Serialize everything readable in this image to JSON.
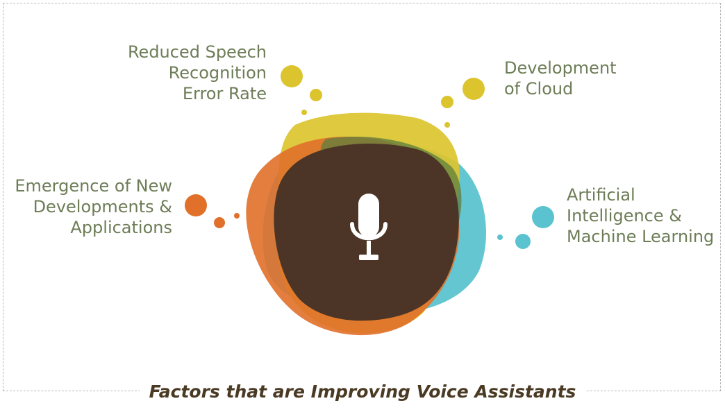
{
  "factors": [
    {
      "id": "speech",
      "lines": [
        "Reduced Speech",
        "Recognition",
        "Error Rate"
      ],
      "color": "#dcc42e"
    },
    {
      "id": "cloud",
      "lines": [
        "Development",
        "of Cloud"
      ],
      "color": "#dcc42e"
    },
    {
      "id": "emergence",
      "lines": [
        "Emergence of New",
        "Developments &",
        "Applications"
      ],
      "color": "#e0702a"
    },
    {
      "id": "ai",
      "lines": [
        "Artificial",
        "Intelligence &",
        "Machine Learning"
      ],
      "color": "#5bc3cf"
    }
  ],
  "caption": "Factors that are Improving Voice Assistants",
  "center_icon": "microphone-icon",
  "colors": {
    "core": "#4c3526",
    "yellow": "#dcc42e",
    "orange": "#e0702a",
    "teal": "#5bc3cf",
    "green": "#5e7d3f",
    "label_text": "#6d7d57",
    "caption_text": "#4a3a24"
  }
}
